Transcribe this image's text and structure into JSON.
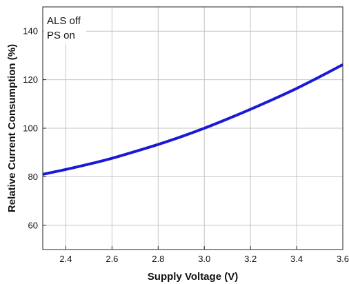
{
  "chart_data": {
    "type": "line",
    "title": "",
    "xlabel": "Supply Voltage (V)",
    "ylabel": "Relative Current Consumption (%)",
    "xlim": [
      2.3,
      3.6
    ],
    "ylim": [
      50,
      150
    ],
    "x_ticks": [
      2.4,
      2.6,
      2.8,
      3.0,
      3.2,
      3.4,
      3.6
    ],
    "x_tick_labels": [
      "2.4",
      "2.6",
      "2.8",
      "3.0",
      "3.2",
      "3.4",
      "3.6"
    ],
    "y_ticks": [
      60,
      80,
      100,
      120,
      140
    ],
    "y_tick_labels": [
      "60",
      "80",
      "100",
      "120",
      "140"
    ],
    "grid": true,
    "annotations": [
      "ALS off",
      "PS on"
    ],
    "series": [
      {
        "color": "#1a1ad6",
        "x": [
          2.3,
          2.4,
          2.5,
          2.6,
          2.7,
          2.8,
          2.9,
          3.0,
          3.1,
          3.2,
          3.3,
          3.4,
          3.5,
          3.6
        ],
        "y": [
          81.0,
          83.0,
          85.2,
          87.6,
          90.4,
          93.3,
          96.5,
          100.0,
          103.8,
          107.8,
          112.0,
          116.4,
          121.2,
          126.2
        ]
      }
    ]
  }
}
